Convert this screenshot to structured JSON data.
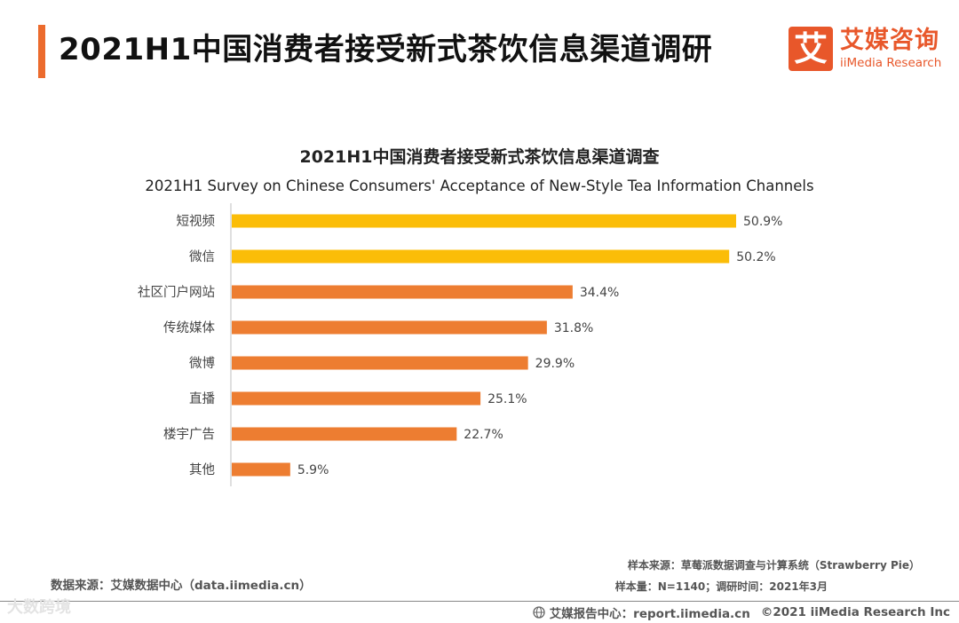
{
  "header": {
    "title": "2021H1中国消费者接受新式茶饮信息渠道调研"
  },
  "logo": {
    "mark": "艾",
    "cn": "艾媒咨询",
    "en": "iiMedia Research"
  },
  "chart_data": {
    "type": "bar",
    "orientation": "horizontal",
    "title": "2021H1中国消费者接受新式茶饮信息渠道调查",
    "subtitle": "2021H1 Survey on Chinese Consumers' Acceptance of New-Style Tea Information Channels",
    "categories": [
      "短视频",
      "微信",
      "社区门户网站",
      "传统媒体",
      "微博",
      "直播",
      "楼宇广告",
      "其他"
    ],
    "values": [
      50.9,
      50.2,
      34.4,
      31.8,
      29.9,
      25.1,
      22.7,
      5.9
    ],
    "value_labels": [
      "50.9%",
      "50.2%",
      "34.4%",
      "31.8%",
      "29.9%",
      "25.1%",
      "22.7%",
      "5.9%"
    ],
    "bar_colors": [
      "#fbbd08",
      "#fbbd08",
      "#ed7d31",
      "#ed7d31",
      "#ed7d31",
      "#ed7d31",
      "#ed7d31",
      "#ed7d31"
    ],
    "xlim": [
      0,
      55
    ],
    "grid": false
  },
  "footer": {
    "source": "数据来源：艾媒数据中心（data.iimedia.cn）",
    "sample_source": "样本来源：草莓派数据调查与计算系统（Strawberry Pie）",
    "sample_size": "样本量：N=1140；调研时间：2021年3月",
    "report_center": "艾媒报告中心：report.iimedia.cn",
    "copyright": "©2021  iiMedia Research  Inc"
  },
  "watermark": "大数跨境",
  "colors": {
    "accent": "#ec6b2d",
    "brand": "#e8572a",
    "bar_highlight": "#fbbd08",
    "bar_default": "#ed7d31"
  }
}
